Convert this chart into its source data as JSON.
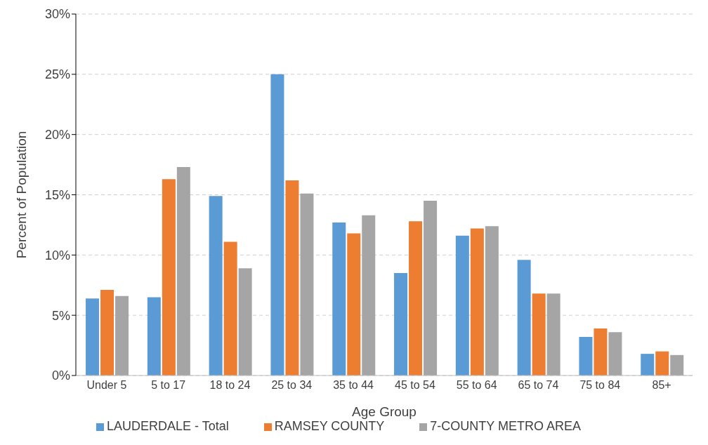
{
  "chart_data": {
    "type": "bar",
    "xlabel": "Age Group",
    "ylabel": "Percent of Population",
    "categories": [
      "Under 5",
      "5 to 17",
      "18 to 24",
      "25 to 34",
      "35 to 44",
      "45 to 54",
      "55 to 64",
      "65 to 74",
      "75 to 84",
      "85+"
    ],
    "series": [
      {
        "name": "LAUDERDALE - Total",
        "color": "#5b9bd5",
        "values": [
          6.4,
          6.5,
          14.9,
          25.0,
          12.7,
          8.5,
          11.6,
          9.6,
          3.2,
          1.8
        ]
      },
      {
        "name": "RAMSEY COUNTY",
        "color": "#ed7d31",
        "values": [
          7.1,
          16.3,
          11.1,
          16.2,
          11.8,
          12.8,
          12.2,
          6.8,
          3.9,
          2.0
        ]
      },
      {
        "name": "7-COUNTY METRO AREA",
        "color": "#a5a5a5",
        "values": [
          6.6,
          17.3,
          8.9,
          15.1,
          13.3,
          14.5,
          12.4,
          6.8,
          3.6,
          1.7
        ]
      }
    ],
    "ylim": [
      0,
      30
    ],
    "yticks": [
      {
        "value": 0,
        "label": "0%"
      },
      {
        "value": 5,
        "label": "5%"
      },
      {
        "value": 10,
        "label": "10%"
      },
      {
        "value": 15,
        "label": "15%"
      },
      {
        "value": 20,
        "label": "20%"
      },
      {
        "value": 25,
        "label": "25%"
      },
      {
        "value": 30,
        "label": "30%"
      }
    ],
    "grid": "y",
    "legend": "bottom"
  }
}
